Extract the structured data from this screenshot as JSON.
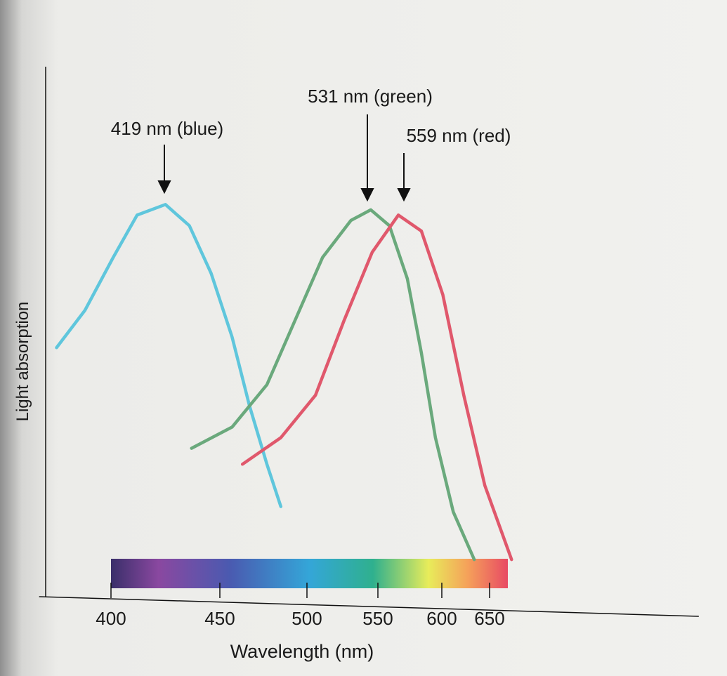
{
  "chart_data": {
    "type": "line",
    "y_label": "Light absorption",
    "x_label": "Wavelength (nm)",
    "annotations": [
      "419 nm (blue)",
      "531 nm (green)",
      "559 nm (red)"
    ],
    "xlim": [
      367,
      869
    ],
    "xticks": [
      400,
      450,
      500,
      550,
      600,
      650
    ],
    "ylim": [
      0,
      1
    ],
    "series": [
      {
        "name": "blue",
        "color": "#5fc6dc",
        "x": [
          375,
          388,
          401,
          412,
          425,
          436,
          446,
          457,
          467,
          477,
          485
        ],
        "values": [
          0.47,
          0.54,
          0.64,
          0.72,
          0.74,
          0.7,
          0.61,
          0.49,
          0.36,
          0.25,
          0.17
        ]
      },
      {
        "name": "green",
        "color": "#6aa97c",
        "x": [
          437,
          457,
          477,
          493,
          511,
          531,
          545,
          559,
          573,
          584,
          595,
          612,
          634
        ],
        "values": [
          0.28,
          0.32,
          0.4,
          0.52,
          0.64,
          0.71,
          0.73,
          0.7,
          0.6,
          0.46,
          0.3,
          0.16,
          0.07
        ]
      },
      {
        "name": "red",
        "color": "#e0586c",
        "x": [
          463,
          485,
          506,
          526,
          546,
          566,
          584,
          601,
          623,
          645,
          673
        ],
        "values": [
          0.25,
          0.3,
          0.38,
          0.52,
          0.65,
          0.72,
          0.69,
          0.57,
          0.38,
          0.21,
          0.07
        ]
      }
    ]
  }
}
